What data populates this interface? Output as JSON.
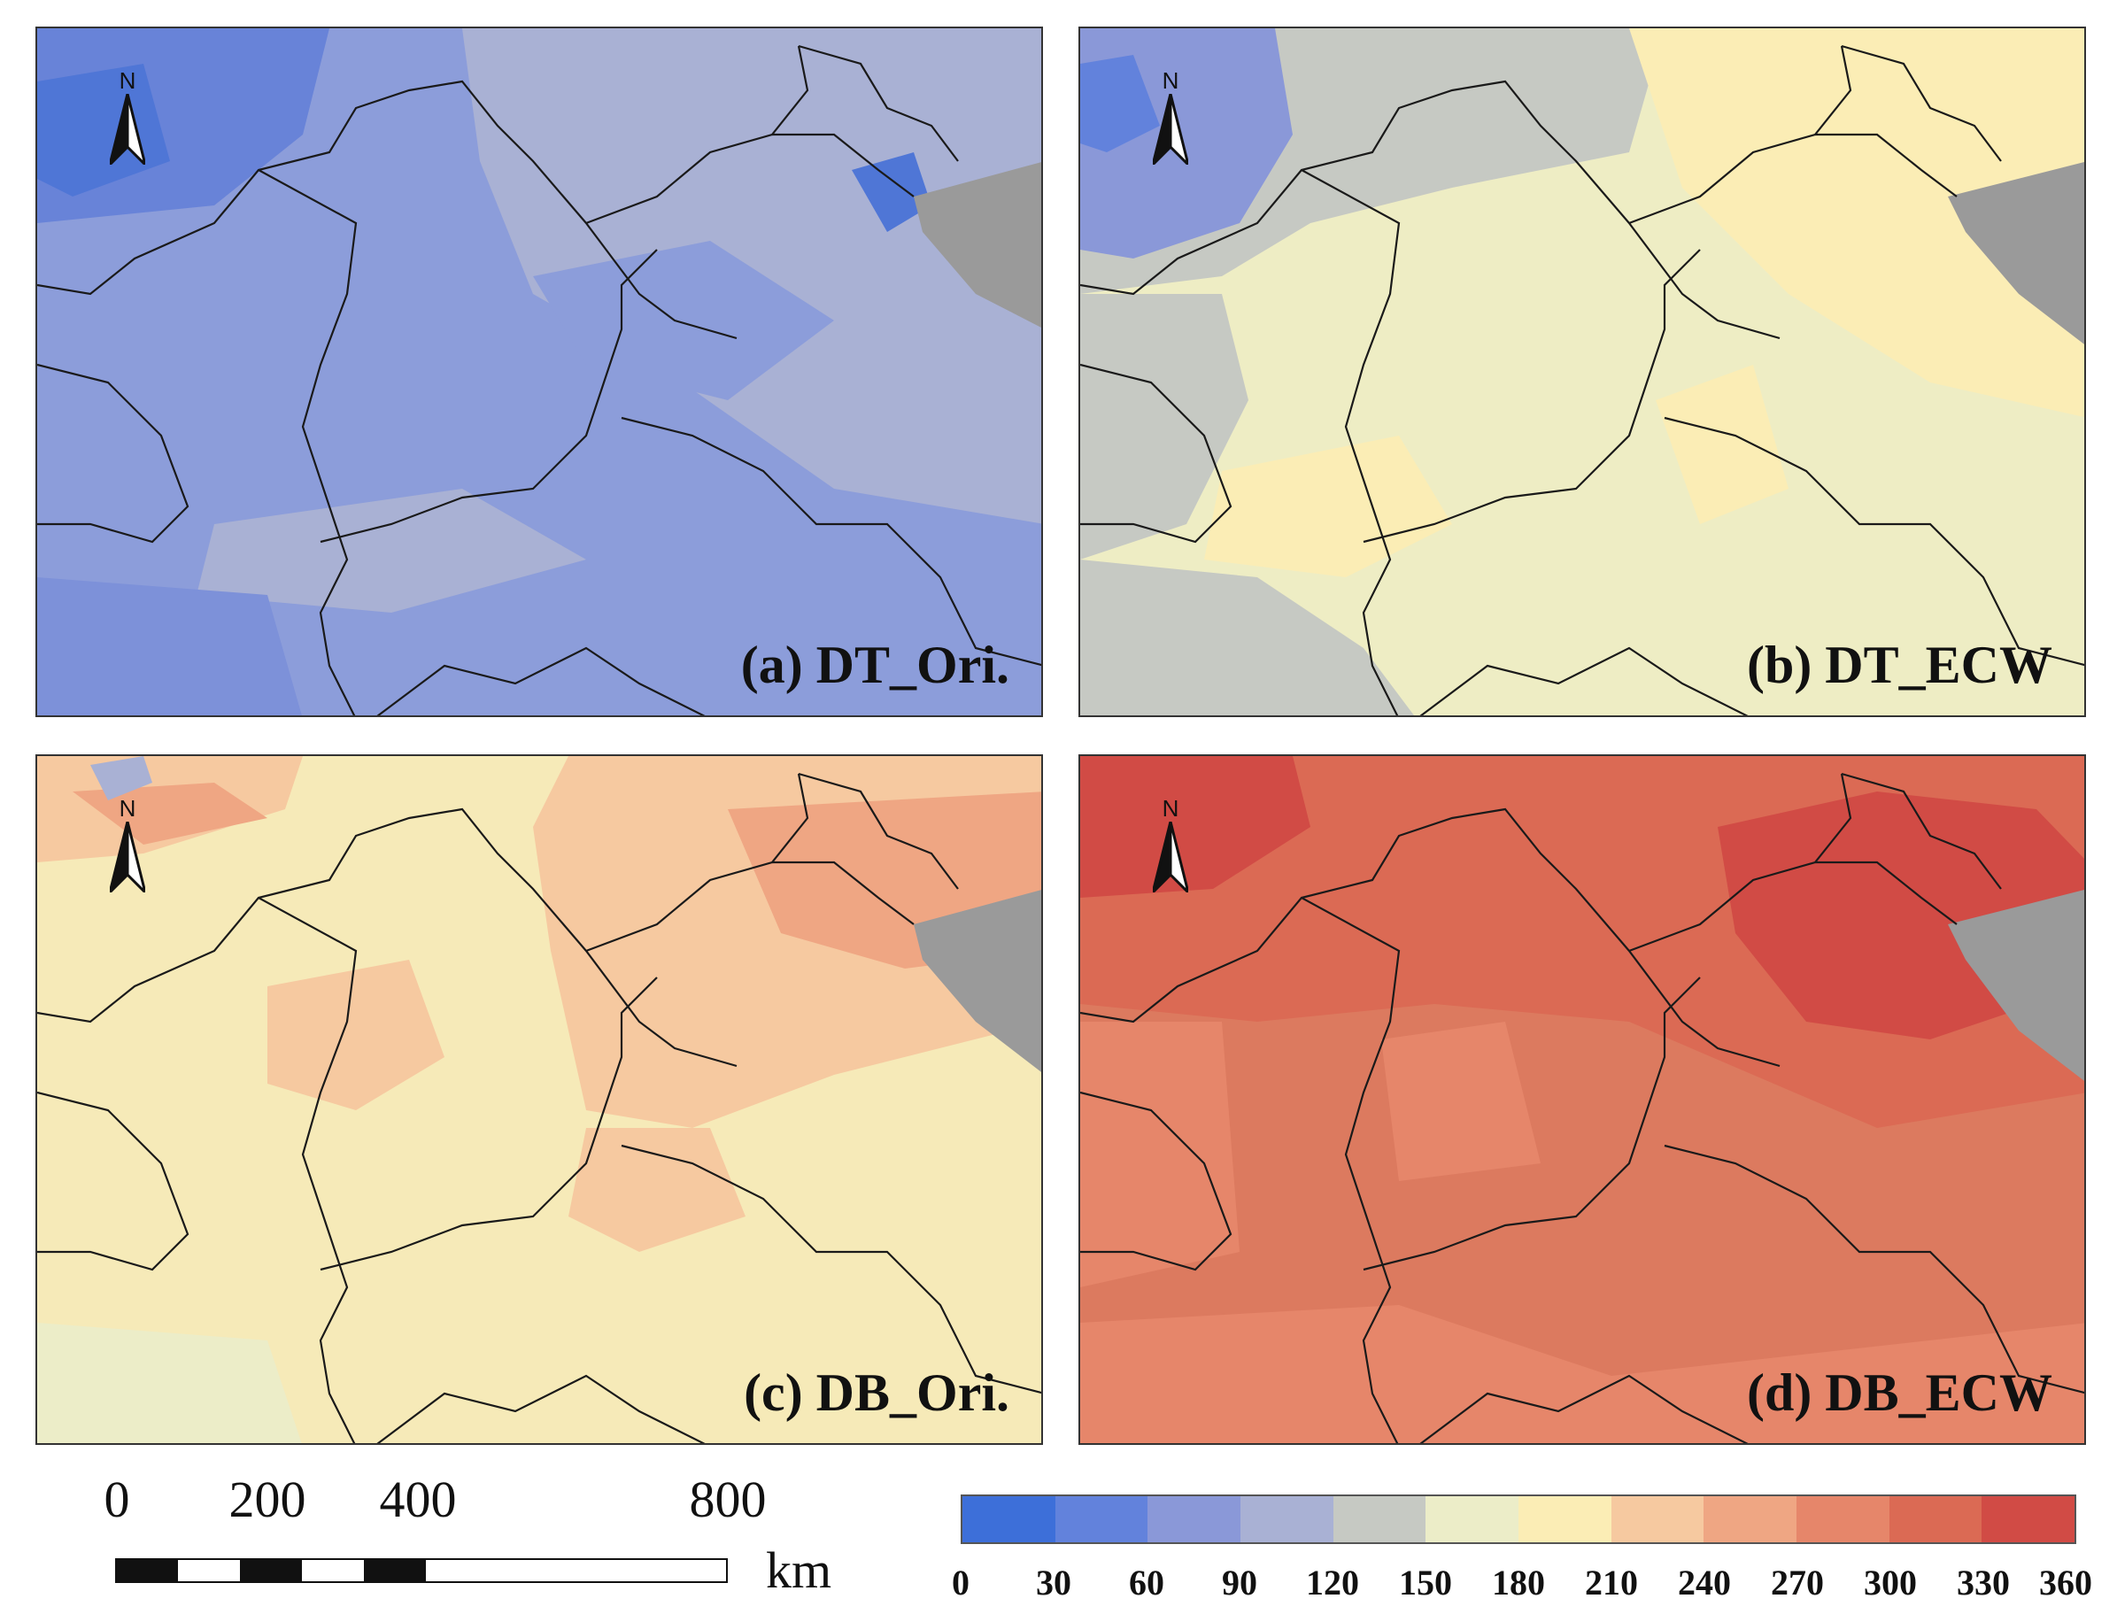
{
  "panels": [
    {
      "id": "a",
      "label": "(a) DT_Ori.",
      "background": "#8c9dda"
    },
    {
      "id": "b",
      "label": "(b) DT_ECW",
      "background": "#eeedc4"
    },
    {
      "id": "c",
      "label": "(c) DB_Ori.",
      "background": "#f6eab8"
    },
    {
      "id": "d",
      "label": "(d) DB_ECW",
      "background": "#dc7a5f"
    }
  ],
  "north_arrow": {
    "letter": "N"
  },
  "scale_bar": {
    "labels": [
      "0",
      "200",
      "400",
      "800"
    ],
    "unit": "km"
  },
  "legend": {
    "ticks": [
      "0",
      "30",
      "60",
      "90",
      "120",
      "150",
      "180",
      "210",
      "240",
      "270",
      "300",
      "330",
      "360"
    ],
    "colors": [
      "#3d6fd9",
      "#6282dc",
      "#8a98d8",
      "#a9b1d4",
      "#c6c9c3",
      "#ecedc8",
      "#fbedb5",
      "#f6c9a0",
      "#efa683",
      "#e6866a",
      "#db6a54",
      "#d14b45"
    ]
  },
  "sea_color": "#999999",
  "boundary_color": "#1a1a1a"
}
